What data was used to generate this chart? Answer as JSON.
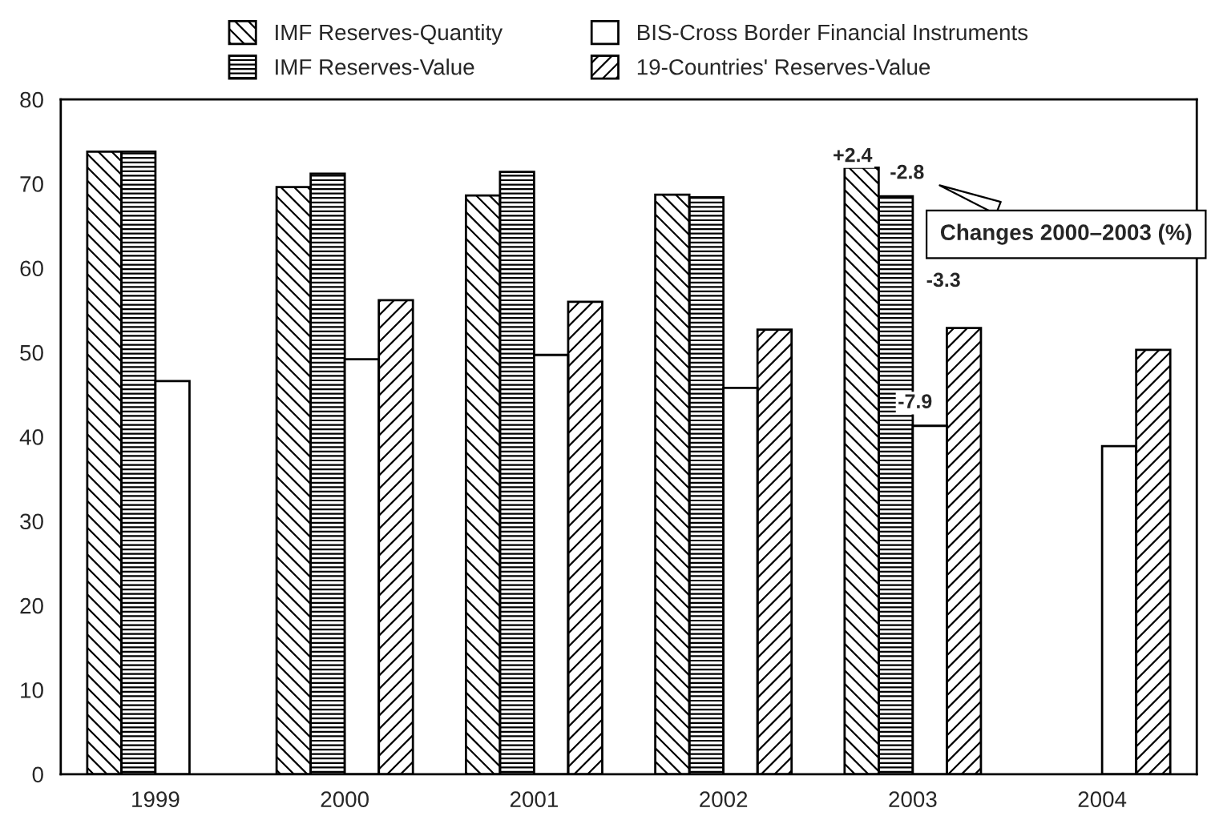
{
  "chart_data": {
    "type": "bar",
    "categories": [
      "1999",
      "2000",
      "2001",
      "2002",
      "2003",
      "2004"
    ],
    "series": [
      {
        "name": "IMF Reserves-Quantity",
        "color": "#000000",
        "values": [
          73.8,
          69.6,
          68.6,
          68.7,
          71.9,
          null
        ]
      },
      {
        "name": "IMF Reserves-Value",
        "color": "#000000",
        "values": [
          73.8,
          71.2,
          71.4,
          68.4,
          68.5,
          null
        ]
      },
      {
        "name": "BIS-Cross Border Financial Instruments",
        "color": "#ffffff",
        "values": [
          46.6,
          49.2,
          49.7,
          45.8,
          41.3,
          38.9
        ]
      },
      {
        "name": "19-Countries' Reserves-Value",
        "color": "#000000",
        "values": [
          null,
          56.2,
          56.0,
          52.7,
          52.9,
          50.3
        ]
      }
    ],
    "ylim": [
      0,
      80
    ],
    "yticks": [
      0,
      10,
      20,
      30,
      40,
      50,
      60,
      70,
      80
    ],
    "grid": false,
    "legend": "top",
    "annotations": [
      "+2.4",
      "-2.8",
      "-7.9",
      "-3.3",
      "Changes 2000–2003 (%)"
    ]
  }
}
